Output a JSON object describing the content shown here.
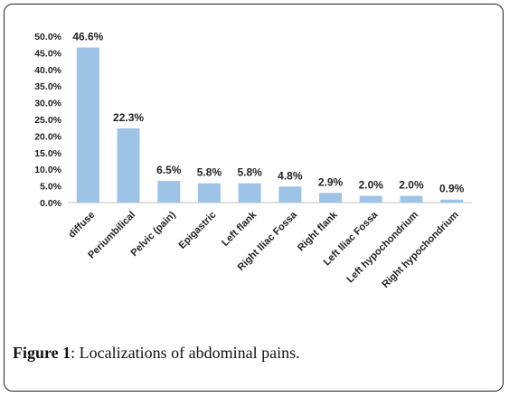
{
  "chart_data": {
    "type": "bar",
    "categories": [
      "diffuse",
      "Periumbilical",
      "Pelvic (pain)",
      "Epigastric",
      "Left flank",
      "Right Iliac Fossa",
      "Right flank",
      "Left Iliac Fossa",
      "Left hypochondrium",
      "Right hypochondrium"
    ],
    "values": [
      46.6,
      22.3,
      6.5,
      5.8,
      5.8,
      4.8,
      2.9,
      2.0,
      2.0,
      0.9
    ],
    "data_labels": [
      "46.6%",
      "22.3%",
      "6.5%",
      "5.8%",
      "5.8%",
      "4.8%",
      "2.9%",
      "2.0%",
      "2.0%",
      "0.9%"
    ],
    "yticks": [
      "0.0%",
      "5.0%",
      "10.0%",
      "15.0%",
      "20.0%",
      "25.0%",
      "30.0%",
      "35.0%",
      "40.0%",
      "45.0%",
      "50.0%"
    ],
    "ylim": [
      0,
      50
    ],
    "grid": false,
    "bar_color": "#9dc3e6"
  },
  "caption": {
    "label": "Figure 1",
    "text": ": Localizations of abdominal pains."
  }
}
